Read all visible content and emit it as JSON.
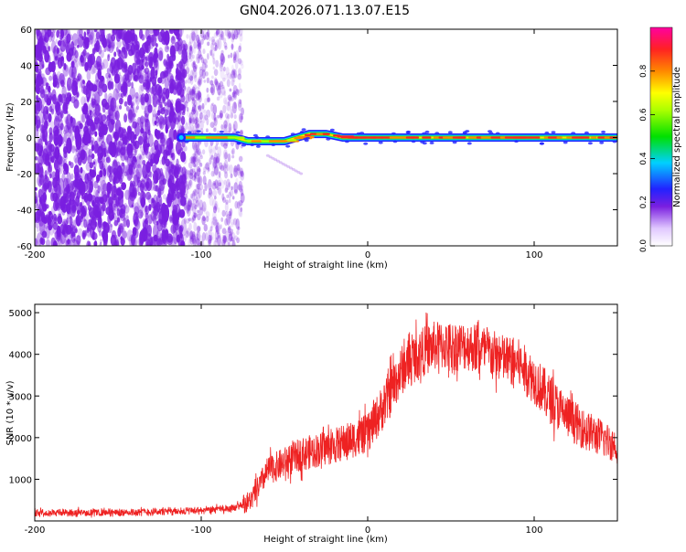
{
  "title": "GN04.2026.071.13.07.E15",
  "colors": {
    "snr_line": "#ee2222",
    "spectro_points": "#7a1fe0",
    "frame": "#000000"
  },
  "chart_data": [
    {
      "type": "heatmap",
      "name": "spectrogram",
      "xlabel": "Height of straight line (km)",
      "ylabel": "Frequency (Hz)",
      "xlim": [
        -200,
        150
      ],
      "ylim": [
        -60,
        60
      ],
      "xticks": [
        -200,
        -100,
        0,
        100
      ],
      "yticks": [
        -60,
        -40,
        -20,
        0,
        20,
        40,
        60
      ],
      "colorbar": {
        "label": "Normalized spectral amplitude",
        "range": [
          0,
          1
        ],
        "ticks": [
          "0.0",
          "0.2",
          "0.4",
          "0.6",
          "0.8"
        ]
      },
      "noise_region_x": [
        -200,
        -75
      ],
      "tone_start_x": -112,
      "tone_frequency_hz": 0,
      "tone_track": [
        {
          "x": -112,
          "f": 0
        },
        {
          "x": -80,
          "f": 0
        },
        {
          "x": -72,
          "f": -2
        },
        {
          "x": -50,
          "f": -2
        },
        {
          "x": -35,
          "f": 2
        },
        {
          "x": -25,
          "f": 2
        },
        {
          "x": -15,
          "f": 0
        },
        {
          "x": 150,
          "f": 0
        }
      ],
      "sideband": {
        "x_start": -60,
        "f_start": -10,
        "x_end": -40,
        "f_end": -20
      }
    },
    {
      "type": "line",
      "name": "snr",
      "xlabel": "Height of straight line (km)",
      "ylabel": "SNR (10 * v/v)",
      "xlim": [
        -200,
        150
      ],
      "ylim": [
        0,
        5200
      ],
      "xticks": [
        -200,
        -100,
        0,
        100
      ],
      "yticks": [
        1000,
        2000,
        3000,
        4000,
        5000
      ],
      "envelope": {
        "x": [
          -200,
          -150,
          -100,
          -80,
          -70,
          -60,
          -40,
          -20,
          0,
          10,
          20,
          30,
          40,
          50,
          60,
          70,
          80,
          90,
          100,
          110,
          120,
          130,
          140,
          150
        ],
        "y": [
          200,
          200,
          250,
          300,
          500,
          1200,
          1600,
          1800,
          2100,
          2800,
          3600,
          4000,
          4200,
          4200,
          4200,
          4100,
          3900,
          3800,
          3400,
          2900,
          2500,
          2200,
          2000,
          1800
        ]
      },
      "noise_amplitude": 600
    }
  ]
}
